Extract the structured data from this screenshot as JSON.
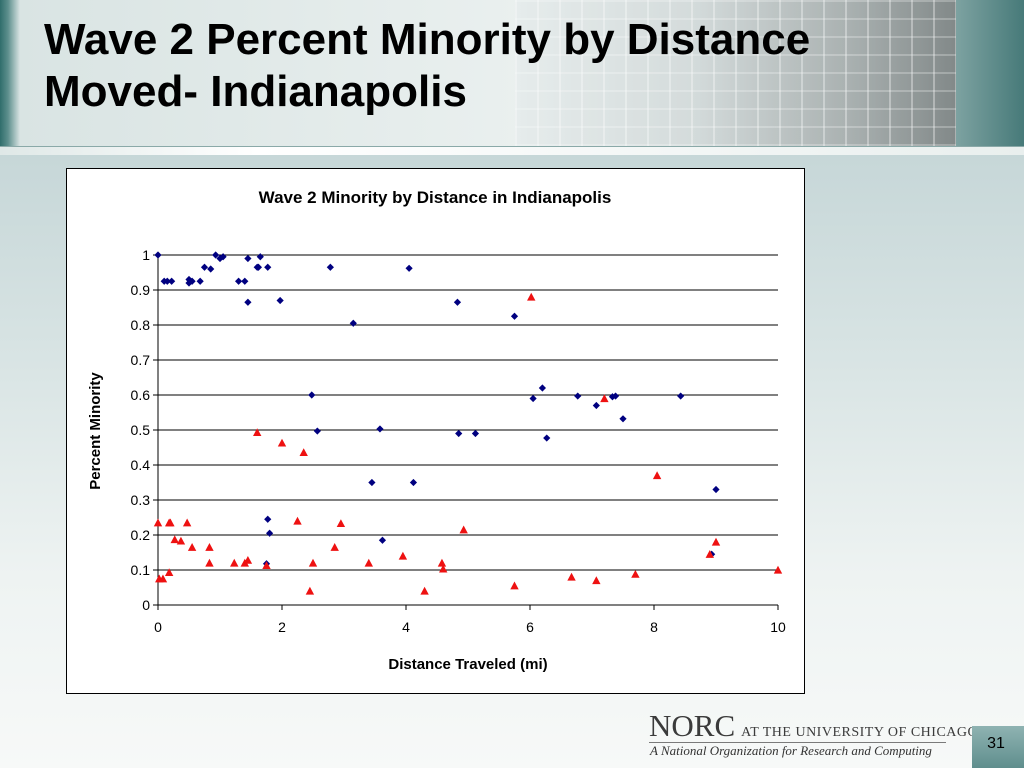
{
  "slide": {
    "title_line1": "Wave 2 Percent Minority by Distance",
    "title_line2": "Moved- Indianapolis",
    "page_number": "31"
  },
  "footer": {
    "logo_norc": "NORC",
    "logo_suffix": "AT THE UNIVERSITY OF CHICAGO",
    "tagline": "A National Organization for Research and Computing"
  },
  "colors": {
    "series_a": "#000080",
    "series_b": "#ee1111",
    "grid": "#000000"
  },
  "chart_data": {
    "type": "scatter",
    "title": "Wave 2 Minority by Distance in Indianapolis",
    "xlabel": "Distance Traveled (mi)",
    "ylabel": "Percent Minority",
    "xlim": [
      0,
      10
    ],
    "ylim": [
      0,
      1
    ],
    "xticks": [
      "0",
      "2",
      "4",
      "6",
      "8",
      "10"
    ],
    "yticks": [
      "0",
      "0.1",
      "0.2",
      "0.3",
      "0.4",
      "0.5",
      "0.6",
      "0.7",
      "0.8",
      "0.9",
      "1"
    ],
    "grid": "horizontal",
    "legend": "none",
    "series": [
      {
        "marker": "diamond",
        "points": [
          [
            0.0,
            1.0
          ],
          [
            0.1,
            0.925
          ],
          [
            0.15,
            0.925
          ],
          [
            0.22,
            0.925
          ],
          [
            0.5,
            0.93
          ],
          [
            0.55,
            0.925
          ],
          [
            0.5,
            0.92
          ],
          [
            0.68,
            0.925
          ],
          [
            0.75,
            0.965
          ],
          [
            0.85,
            0.96
          ],
          [
            0.93,
            1.0
          ],
          [
            1.0,
            0.99
          ],
          [
            1.05,
            0.995
          ],
          [
            1.3,
            0.925
          ],
          [
            1.4,
            0.925
          ],
          [
            1.45,
            0.865
          ],
          [
            1.45,
            0.99
          ],
          [
            1.6,
            0.965
          ],
          [
            1.62,
            0.965
          ],
          [
            1.65,
            0.995
          ],
          [
            1.77,
            0.965
          ],
          [
            1.97,
            0.87
          ],
          [
            2.78,
            0.965
          ],
          [
            3.15,
            0.805
          ],
          [
            4.05,
            0.962
          ],
          [
            4.83,
            0.865
          ],
          [
            5.75,
            0.825
          ],
          [
            2.48,
            0.6
          ],
          [
            2.57,
            0.497
          ],
          [
            3.58,
            0.503
          ],
          [
            3.45,
            0.35
          ],
          [
            4.12,
            0.35
          ],
          [
            4.85,
            0.49
          ],
          [
            5.12,
            0.49
          ],
          [
            6.05,
            0.59
          ],
          [
            6.2,
            0.62
          ],
          [
            6.27,
            0.477
          ],
          [
            6.77,
            0.597
          ],
          [
            7.07,
            0.57
          ],
          [
            7.33,
            0.595
          ],
          [
            7.38,
            0.597
          ],
          [
            7.5,
            0.532
          ],
          [
            8.43,
            0.597
          ],
          [
            9.0,
            0.33
          ],
          [
            1.77,
            0.245
          ],
          [
            1.8,
            0.205
          ],
          [
            3.62,
            0.185
          ],
          [
            1.75,
            0.118
          ],
          [
            8.93,
            0.145
          ]
        ]
      },
      {
        "marker": "triangle",
        "points": [
          [
            0.0,
            0.235
          ],
          [
            0.02,
            0.075
          ],
          [
            0.08,
            0.075
          ],
          [
            0.18,
            0.235
          ],
          [
            0.2,
            0.235
          ],
          [
            0.18,
            0.093
          ],
          [
            0.27,
            0.187
          ],
          [
            0.37,
            0.183
          ],
          [
            0.47,
            0.235
          ],
          [
            0.55,
            0.165
          ],
          [
            0.83,
            0.165
          ],
          [
            0.83,
            0.12
          ],
          [
            1.23,
            0.12
          ],
          [
            1.4,
            0.12
          ],
          [
            1.45,
            0.128
          ],
          [
            1.6,
            0.493
          ],
          [
            1.75,
            0.113
          ],
          [
            2.0,
            0.463
          ],
          [
            2.25,
            0.24
          ],
          [
            2.35,
            0.436
          ],
          [
            2.45,
            0.04
          ],
          [
            2.5,
            0.12
          ],
          [
            2.85,
            0.165
          ],
          [
            2.95,
            0.233
          ],
          [
            3.4,
            0.12
          ],
          [
            3.95,
            0.14
          ],
          [
            4.3,
            0.04
          ],
          [
            4.58,
            0.12
          ],
          [
            4.6,
            0.103
          ],
          [
            4.93,
            0.215
          ],
          [
            5.75,
            0.055
          ],
          [
            6.02,
            0.88
          ],
          [
            6.67,
            0.08
          ],
          [
            7.07,
            0.07
          ],
          [
            7.2,
            0.59
          ],
          [
            7.7,
            0.088
          ],
          [
            8.05,
            0.37
          ],
          [
            8.9,
            0.145
          ],
          [
            9.0,
            0.18
          ],
          [
            10.0,
            0.1
          ]
        ]
      }
    ]
  }
}
